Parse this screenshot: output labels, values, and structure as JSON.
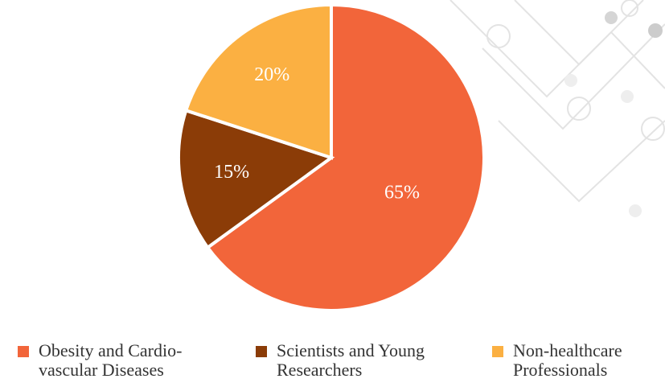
{
  "chart_data": {
    "type": "pie",
    "categories": [
      "Obesity and Cardio-vascular Diseases",
      "Scientists and Young Researchers",
      "Non-healthcare Professionals"
    ],
    "values": [
      65,
      15,
      20
    ],
    "value_labels": [
      "65%",
      "15%",
      "20%"
    ],
    "colors": [
      "#f2653a",
      "#8b3c07",
      "#fbb042"
    ]
  }
}
